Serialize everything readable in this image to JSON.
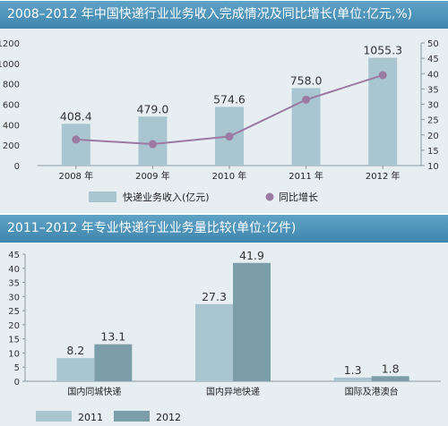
{
  "titles": {
    "top": "2008–2012 年中国快递行业业务收入完成情况及同比增长(单位:亿元,%)",
    "bottom": "2011–2012 年专业快递行业业务量比较(单位:亿件)"
  },
  "colors": {
    "header": "#4a8fb6",
    "panel": "#e7eef2",
    "bar_light": "#a9c5cf",
    "bar_dark": "#7c9ea9",
    "line": "#9c7aa1"
  },
  "chart_data": [
    {
      "type": "bar",
      "title": "2008–2012 年中国快递行业业务收入完成情况及同比增长(单位:亿元,%)",
      "categories": [
        "2008 年",
        "2009 年",
        "2010 年",
        "2011 年",
        "2012 年"
      ],
      "series": [
        {
          "name": "快递业务收入(亿元)",
          "type": "bar",
          "axis": "left",
          "values": [
            408.4,
            479.0,
            574.6,
            758.0,
            1055.3
          ]
        },
        {
          "name": "同比增长",
          "type": "line",
          "axis": "right",
          "values": [
            18.5,
            17.0,
            19.5,
            31.5,
            39.5
          ]
        }
      ],
      "value_labels": [
        "408.4",
        "479.0",
        "574.6",
        "758.0",
        "1055.3"
      ],
      "ylim": [
        0,
        1200
      ],
      "yticks": [
        0,
        200,
        400,
        600,
        800,
        1000,
        1200
      ],
      "y2lim": [
        10,
        50
      ],
      "y2ticks": [
        10,
        15,
        20,
        25,
        30,
        35,
        40,
        45,
        50
      ],
      "legend_position": "bottom"
    },
    {
      "type": "bar",
      "title": "2011–2012 年专业快递行业业务量比较(单位:亿件)",
      "categories": [
        "国内同城快递",
        "国内异地快递",
        "国际及港澳台"
      ],
      "series": [
        {
          "name": "2011",
          "values": [
            8.2,
            27.3,
            1.3
          ]
        },
        {
          "name": "2012",
          "values": [
            13.1,
            41.9,
            1.8
          ]
        }
      ],
      "value_labels": [
        [
          "8.2",
          "27.3",
          "1.3"
        ],
        [
          "13.1",
          "41.9",
          "1.8"
        ]
      ],
      "ylim": [
        0,
        45
      ],
      "yticks": [
        0,
        5,
        10,
        15,
        20,
        25,
        30,
        35,
        40,
        45
      ],
      "legend_position": "bottom-left"
    }
  ]
}
